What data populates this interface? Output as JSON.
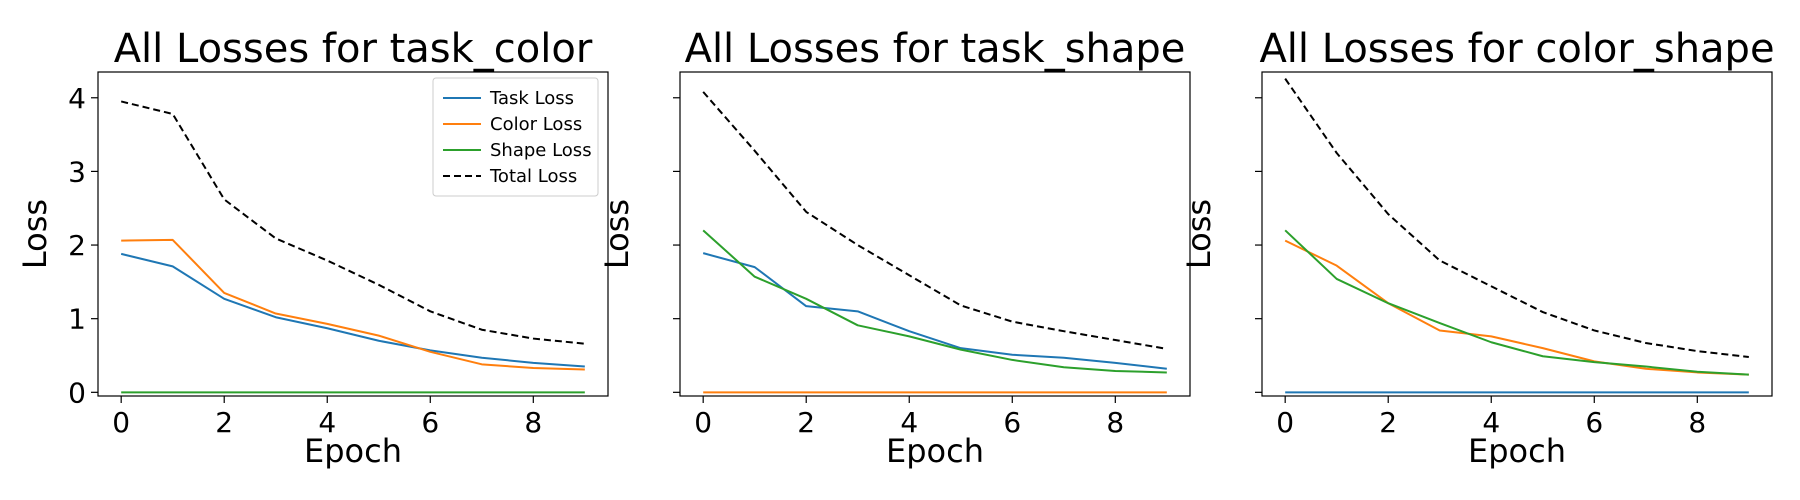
{
  "chart_data": [
    {
      "type": "line",
      "title": "All Losses for task_color",
      "xlabel": "Epoch",
      "ylabel": "Loss",
      "x": [
        0,
        1,
        2,
        3,
        4,
        5,
        6,
        7,
        8,
        9
      ],
      "xticks": [
        0,
        2,
        4,
        6,
        8
      ],
      "yticks": [
        0,
        1,
        2,
        3,
        4
      ],
      "xlim": [
        -0.45,
        9.45
      ],
      "ylim": [
        -0.05,
        4.35
      ],
      "grid": false,
      "show_ytick_labels": true,
      "legend": "top-right",
      "series": [
        {
          "name": "Task Loss",
          "color": "#1f77b4",
          "dash": "solid",
          "values": [
            1.88,
            1.71,
            1.27,
            1.02,
            0.87,
            0.7,
            0.57,
            0.47,
            0.4,
            0.35
          ]
        },
        {
          "name": "Color Loss",
          "color": "#ff7f0e",
          "dash": "solid",
          "values": [
            2.06,
            2.07,
            1.35,
            1.07,
            0.93,
            0.77,
            0.55,
            0.38,
            0.33,
            0.31
          ]
        },
        {
          "name": "Shape Loss",
          "color": "#2ca02c",
          "dash": "solid",
          "values": [
            0,
            0,
            0,
            0,
            0,
            0,
            0,
            0,
            0,
            0
          ]
        },
        {
          "name": "Total Loss",
          "color": "#000000",
          "dash": "dashed",
          "values": [
            3.95,
            3.78,
            2.62,
            2.09,
            1.79,
            1.46,
            1.1,
            0.85,
            0.73,
            0.66
          ]
        }
      ]
    },
    {
      "type": "line",
      "title": "All Losses for task_shape",
      "xlabel": "Epoch",
      "ylabel": "Loss",
      "x": [
        0,
        1,
        2,
        3,
        4,
        5,
        6,
        7,
        8,
        9
      ],
      "xticks": [
        0,
        2,
        4,
        6,
        8
      ],
      "yticks": [
        0,
        1,
        2,
        3,
        4
      ],
      "xlim": [
        -0.45,
        9.45
      ],
      "ylim": [
        -0.05,
        4.35
      ],
      "grid": false,
      "show_ytick_labels": false,
      "legend": "none",
      "series": [
        {
          "name": "Task Loss",
          "color": "#1f77b4",
          "dash": "solid",
          "values": [
            1.89,
            1.7,
            1.17,
            1.1,
            0.83,
            0.6,
            0.51,
            0.47,
            0.4,
            0.32
          ]
        },
        {
          "name": "Color Loss",
          "color": "#ff7f0e",
          "dash": "solid",
          "values": [
            0,
            0,
            0,
            0,
            0,
            0,
            0,
            0,
            0,
            0
          ]
        },
        {
          "name": "Shape Loss",
          "color": "#2ca02c",
          "dash": "solid",
          "values": [
            2.2,
            1.57,
            1.27,
            0.91,
            0.76,
            0.58,
            0.44,
            0.34,
            0.29,
            0.27
          ]
        },
        {
          "name": "Total Loss",
          "color": "#000000",
          "dash": "dashed",
          "values": [
            4.08,
            3.28,
            2.45,
            2.0,
            1.59,
            1.18,
            0.96,
            0.83,
            0.71,
            0.59
          ]
        }
      ]
    },
    {
      "type": "line",
      "title": "All Losses for color_shape",
      "xlabel": "Epoch",
      "ylabel": "Loss",
      "x": [
        0,
        1,
        2,
        3,
        4,
        5,
        6,
        7,
        8,
        9
      ],
      "xticks": [
        0,
        2,
        4,
        6,
        8
      ],
      "yticks": [
        0,
        1,
        2,
        3,
        4
      ],
      "xlim": [
        -0.45,
        9.45
      ],
      "ylim": [
        -0.05,
        4.35
      ],
      "grid": false,
      "show_ytick_labels": false,
      "legend": "none",
      "series": [
        {
          "name": "Task Loss",
          "color": "#1f77b4",
          "dash": "solid",
          "values": [
            0,
            0,
            0,
            0,
            0,
            0,
            0,
            0,
            0,
            0
          ]
        },
        {
          "name": "Color Loss",
          "color": "#ff7f0e",
          "dash": "solid",
          "values": [
            2.06,
            1.72,
            1.21,
            0.84,
            0.76,
            0.6,
            0.42,
            0.32,
            0.27,
            0.24
          ]
        },
        {
          "name": "Shape Loss",
          "color": "#2ca02c",
          "dash": "solid",
          "values": [
            2.2,
            1.54,
            1.21,
            0.94,
            0.68,
            0.49,
            0.41,
            0.35,
            0.28,
            0.24
          ]
        },
        {
          "name": "Total Loss",
          "color": "#000000",
          "dash": "dashed",
          "values": [
            4.26,
            3.25,
            2.42,
            1.79,
            1.44,
            1.09,
            0.84,
            0.67,
            0.56,
            0.48
          ]
        }
      ]
    }
  ]
}
